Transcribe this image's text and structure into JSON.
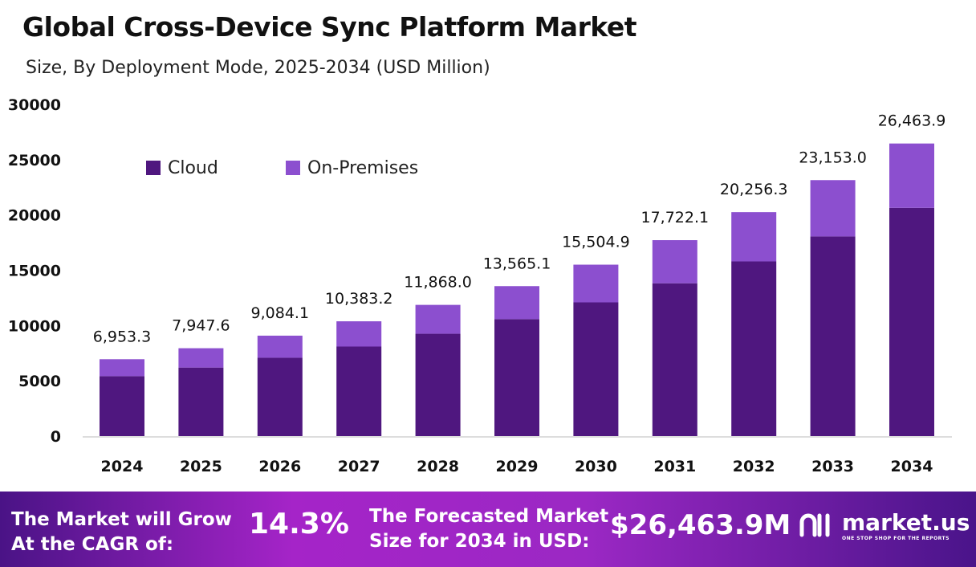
{
  "title": "Global Cross-Device Sync Platform Market",
  "subtitle": "Size, By Deployment Mode, 2025-2034 (USD Million)",
  "colors": {
    "Cloud": "#4f177f",
    "On-Premises": "#8c4fcf"
  },
  "chart_data": {
    "type": "bar",
    "stacked": true,
    "categories": [
      "2024",
      "2025",
      "2026",
      "2027",
      "2028",
      "2029",
      "2030",
      "2031",
      "2032",
      "2033",
      "2034"
    ],
    "series": [
      {
        "name": "Cloud",
        "values": [
          5423,
          6199,
          7086,
          8099,
          9257,
          10581,
          12094,
          13823,
          15800,
          18059,
          20642
        ]
      },
      {
        "name": "On-Premises",
        "values": [
          1530,
          1749,
          1998,
          2284,
          2611,
          2984,
          3411,
          3899,
          4456,
          5094,
          5822
        ]
      }
    ],
    "totals": [
      "6,953.3",
      "7,947.6",
      "9,084.1",
      "10,383.2",
      "11,868.0",
      "13,565.1",
      "15,504.9",
      "17,722.1",
      "20,256.3",
      "23,153.0",
      "26,463.9"
    ],
    "total_values": [
      6953.3,
      7947.6,
      9084.1,
      10383.2,
      11868.0,
      13565.1,
      15504.9,
      17722.1,
      20256.3,
      23153.0,
      26463.9
    ],
    "yticks": [
      "0",
      "5000",
      "10000",
      "15000",
      "20000",
      "25000",
      "30000"
    ],
    "ylim": [
      0,
      30000
    ],
    "grid": false,
    "legend": "top-left"
  },
  "banner": {
    "cagr_label": "The Market will Grow At the CAGR of:",
    "cagr_value": "14.3%",
    "forecast_label": "The Forecasted Market Size for 2034 in USD:",
    "forecast_value": "$26,463.9M",
    "logo_text": "market.us",
    "logo_tagline": "ONE STOP SHOP FOR THE REPORTS"
  }
}
